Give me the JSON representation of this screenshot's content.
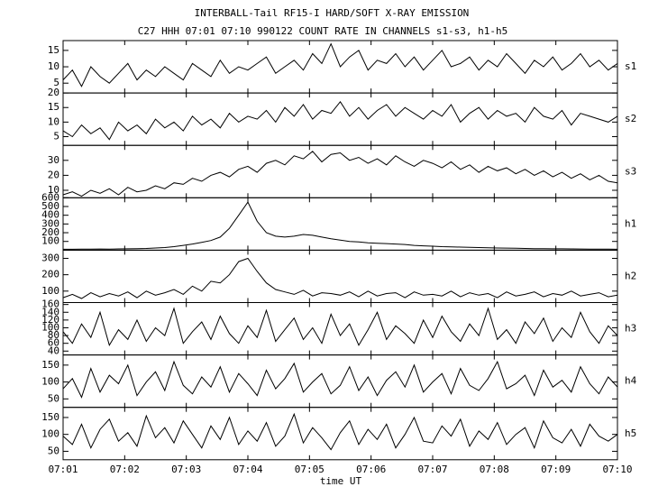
{
  "chart_data": {
    "type": "line",
    "title": "INTERBALL-Tail RF15-I HARD/SOFT X-RAY EMISSION",
    "subtitle": "C27 HHH 07:01 07:10 990122  COUNT RATE IN CHANNELS s1-s3, h1-h5",
    "xlabel": "time UT",
    "xlim": [
      1,
      10
    ],
    "xticks": [
      {
        "value": 1,
        "label": "07:01"
      },
      {
        "value": 2,
        "label": "07:02"
      },
      {
        "value": 3,
        "label": "07:03"
      },
      {
        "value": 4,
        "label": "07:04"
      },
      {
        "value": 5,
        "label": "07:05"
      },
      {
        "value": 6,
        "label": "07:06"
      },
      {
        "value": 7,
        "label": "07:07"
      },
      {
        "value": 8,
        "label": "07:08"
      },
      {
        "value": 9,
        "label": "07:09"
      },
      {
        "value": 10,
        "label": "07:10"
      }
    ],
    "x": [
      1,
      1.15,
      1.3,
      1.45,
      1.6,
      1.75,
      1.9,
      2.05,
      2.2,
      2.35,
      2.5,
      2.65,
      2.8,
      2.95,
      3.1,
      3.25,
      3.4,
      3.55,
      3.7,
      3.85,
      4,
      4.15,
      4.3,
      4.45,
      4.6,
      4.75,
      4.9,
      5.05,
      5.2,
      5.35,
      5.5,
      5.65,
      5.8,
      5.95,
      6.1,
      6.25,
      6.4,
      6.55,
      6.7,
      6.85,
      7,
      7.15,
      7.3,
      7.45,
      7.6,
      7.75,
      7.9,
      8.05,
      8.2,
      8.35,
      8.5,
      8.65,
      8.8,
      8.95,
      9.1,
      9.25,
      9.4,
      9.55,
      9.7,
      9.85,
      10
    ],
    "series": [
      {
        "name": "s1",
        "color": "#000000",
        "ylim": [
          2,
          18
        ],
        "yticks": [
          5,
          10,
          15
        ],
        "values": [
          6,
          9,
          4,
          10,
          7,
          5,
          8,
          11,
          6,
          9,
          7,
          10,
          8,
          6,
          11,
          9,
          7,
          12,
          8,
          10,
          9,
          11,
          13,
          8,
          10,
          12,
          9,
          14,
          11,
          17,
          10,
          13,
          15,
          9,
          12,
          11,
          14,
          10,
          13,
          9,
          12,
          15,
          10,
          11,
          13,
          9,
          12,
          10,
          14,
          11,
          8,
          12,
          10,
          13,
          9,
          11,
          14,
          10,
          12,
          9,
          11
        ]
      },
      {
        "name": "s2",
        "color": "#000000",
        "ylim": [
          2,
          20
        ],
        "yticks": [
          5,
          10,
          15,
          20
        ],
        "values": [
          7,
          5,
          9,
          6,
          8,
          4,
          10,
          7,
          9,
          6,
          11,
          8,
          10,
          7,
          12,
          9,
          11,
          8,
          13,
          10,
          12,
          11,
          14,
          10,
          15,
          12,
          16,
          11,
          14,
          13,
          17,
          12,
          15,
          11,
          14,
          16,
          12,
          15,
          13,
          11,
          14,
          12,
          16,
          10,
          13,
          15,
          11,
          14,
          12,
          13,
          10,
          15,
          12,
          11,
          14,
          9,
          13,
          12,
          11,
          10,
          12
        ]
      },
      {
        "name": "s3",
        "color": "#000000",
        "ylim": [
          5,
          40
        ],
        "yticks": [
          10,
          20,
          30
        ],
        "values": [
          7,
          9,
          6,
          10,
          8,
          11,
          7,
          12,
          9,
          10,
          13,
          11,
          15,
          14,
          18,
          16,
          20,
          22,
          19,
          24,
          26,
          22,
          28,
          30,
          27,
          33,
          31,
          36,
          29,
          34,
          35,
          30,
          32,
          28,
          31,
          27,
          33,
          29,
          26,
          30,
          28,
          25,
          29,
          24,
          27,
          22,
          26,
          23,
          25,
          21,
          24,
          20,
          23,
          19,
          22,
          18,
          21,
          17,
          20,
          16,
          15
        ]
      },
      {
        "name": "h1",
        "color": "#000000",
        "ylim": [
          0,
          600
        ],
        "yticks": [
          100,
          200,
          300,
          400,
          500,
          600
        ],
        "values": [
          10,
          10,
          12,
          11,
          13,
          12,
          14,
          15,
          18,
          20,
          25,
          30,
          40,
          55,
          70,
          90,
          110,
          150,
          250,
          400,
          550,
          330,
          200,
          160,
          150,
          160,
          180,
          170,
          150,
          130,
          115,
          100,
          95,
          85,
          80,
          75,
          70,
          65,
          55,
          50,
          45,
          40,
          38,
          35,
          32,
          30,
          28,
          25,
          24,
          22,
          20,
          18,
          17,
          16,
          15,
          14,
          13,
          12,
          12,
          11,
          10
        ]
      },
      {
        "name": "h2",
        "color": "#000000",
        "ylim": [
          30,
          350
        ],
        "yticks": [
          100,
          200,
          300
        ],
        "values": [
          60,
          80,
          55,
          90,
          65,
          85,
          70,
          95,
          60,
          100,
          75,
          90,
          110,
          80,
          130,
          100,
          160,
          150,
          200,
          280,
          300,
          220,
          150,
          110,
          95,
          80,
          105,
          70,
          90,
          85,
          75,
          95,
          65,
          100,
          70,
          85,
          90,
          60,
          95,
          75,
          80,
          70,
          100,
          65,
          90,
          75,
          85,
          60,
          95,
          70,
          80,
          95,
          65,
          85,
          75,
          100,
          70,
          80,
          90,
          65,
          75
        ]
      },
      {
        "name": "h3",
        "color": "#000000",
        "ylim": [
          30,
          165
        ],
        "yticks": [
          40,
          60,
          80,
          100,
          120,
          140,
          160
        ],
        "values": [
          90,
          60,
          110,
          75,
          140,
          55,
          95,
          70,
          120,
          65,
          100,
          80,
          150,
          60,
          90,
          115,
          70,
          130,
          85,
          60,
          105,
          75,
          145,
          65,
          95,
          125,
          70,
          100,
          60,
          135,
          80,
          110,
          55,
          95,
          140,
          70,
          105,
          85,
          60,
          120,
          75,
          130,
          90,
          65,
          110,
          80,
          150,
          70,
          95,
          60,
          115,
          85,
          125,
          65,
          100,
          75,
          140,
          90,
          60,
          105,
          80
        ]
      },
      {
        "name": "h4",
        "color": "#000000",
        "ylim": [
          25,
          180
        ],
        "yticks": [
          50,
          100,
          150
        ],
        "values": [
          80,
          110,
          55,
          140,
          70,
          120,
          95,
          150,
          60,
          100,
          130,
          75,
          160,
          90,
          65,
          115,
          85,
          145,
          70,
          125,
          95,
          60,
          135,
          80,
          110,
          155,
          70,
          100,
          125,
          65,
          90,
          145,
          75,
          115,
          60,
          105,
          130,
          85,
          150,
          70,
          100,
          125,
          65,
          140,
          90,
          75,
          110,
          160,
          80,
          95,
          120,
          60,
          135,
          85,
          105,
          70,
          145,
          95,
          65,
          115,
          85
        ]
      },
      {
        "name": "h5",
        "color": "#000000",
        "ylim": [
          25,
          180
        ],
        "yticks": [
          50,
          100,
          150
        ],
        "values": [
          95,
          70,
          130,
          60,
          115,
          145,
          80,
          105,
          65,
          155,
          90,
          120,
          75,
          140,
          100,
          60,
          125,
          85,
          150,
          70,
          110,
          80,
          135,
          65,
          95,
          160,
          75,
          120,
          90,
          55,
          105,
          140,
          70,
          115,
          85,
          130,
          60,
          100,
          150,
          80,
          75,
          125,
          95,
          145,
          65,
          110,
          85,
          135,
          70,
          100,
          120,
          60,
          140,
          90,
          75,
          115,
          65,
          130,
          95,
          80,
          100
        ]
      }
    ]
  }
}
